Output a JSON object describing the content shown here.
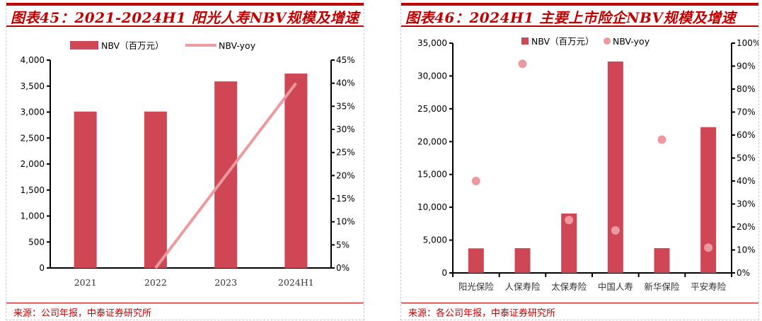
{
  "chart_data": [
    {
      "type": "bar+line",
      "title": "图表45：2021-2024H1 阳光人寿NBV规模及增速",
      "categories": [
        "2021",
        "2022",
        "2023",
        "2024H1"
      ],
      "series": [
        {
          "name": "NBV（百万元）",
          "type": "bar",
          "axis": "left",
          "values": [
            3010,
            3010,
            3590,
            3741
          ]
        },
        {
          "name": "NBV-yoy",
          "type": "line",
          "axis": "right",
          "values": [
            null,
            0,
            20,
            40
          ]
        }
      ],
      "ylim": [
        0,
        4000
      ],
      "yticks": [
        "0",
        "500",
        "1,000",
        "1,500",
        "2,000",
        "2,500",
        "3,000",
        "3,500",
        "4,000"
      ],
      "y2lim": [
        0,
        45
      ],
      "y2ticks": [
        "0%",
        "5%",
        "10%",
        "15%",
        "20%",
        "25%",
        "30%",
        "35%",
        "40%",
        "45%"
      ],
      "legend": "top",
      "grid": false,
      "source": "来源：公司年报，中泰证券研究所",
      "colors": {
        "bar": "#cf4655",
        "line": "#ec9aa0"
      }
    },
    {
      "type": "bar+scatter",
      "title": "图表46：2024H1 主要上市险企NBV规模及增速",
      "categories": [
        "阳光保险",
        "人保寿险",
        "太保寿险",
        "中国人寿",
        "新华保险",
        "平安寿险"
      ],
      "series": [
        {
          "name": "NBV（百万元）",
          "type": "bar",
          "axis": "left",
          "values": [
            3741,
            3770,
            9046,
            32200,
            3770,
            22200
          ]
        },
        {
          "name": "NBV-yoy",
          "type": "scatter",
          "axis": "right",
          "values": [
            40,
            91,
            23,
            18.5,
            58,
            11
          ]
        }
      ],
      "ylim": [
        0,
        35000
      ],
      "yticks": [
        "0",
        "5,000",
        "10,000",
        "15,000",
        "20,000",
        "25,000",
        "30,000",
        "35,000"
      ],
      "y2lim": [
        0,
        100
      ],
      "y2ticks": [
        "0%",
        "10%",
        "20%",
        "30%",
        "40%",
        "50%",
        "60%",
        "70%",
        "80%",
        "90%",
        "100%"
      ],
      "legend": "top",
      "grid": false,
      "source": "来源：各公司年报，中泰证券研究所",
      "colors": {
        "bar": "#cf4655",
        "dot": "#ec9aa0"
      }
    }
  ]
}
